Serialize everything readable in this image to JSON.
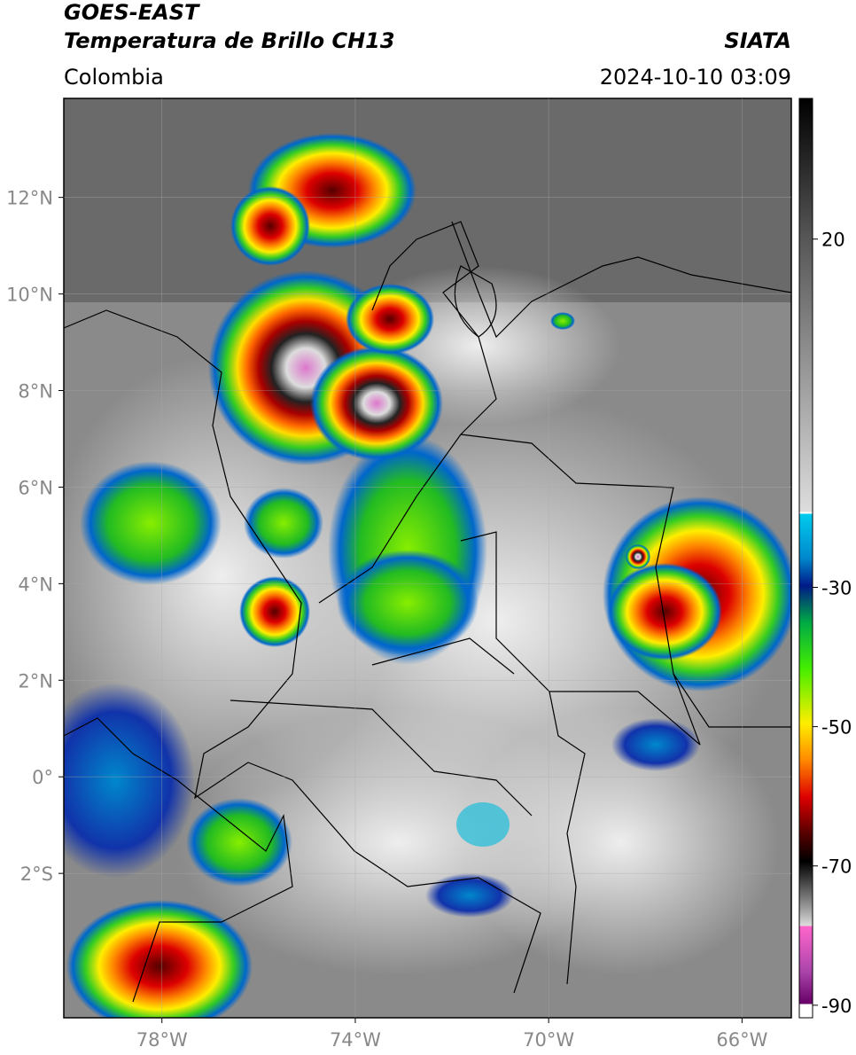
{
  "header": {
    "title": "GOES-EAST",
    "subtitle": "Temperatura de Brillo CH13",
    "region": "Colombia",
    "source": "SIATA",
    "datetime": "2024-10-10 03:09"
  },
  "map": {
    "lonlim": [
      -80.03,
      -64.98
    ],
    "latlim": [
      -4.99,
      14.05
    ],
    "grid": true,
    "lonticks": [
      {
        "value": -78,
        "label": "78°W"
      },
      {
        "value": -74,
        "label": "74°W"
      },
      {
        "value": -70,
        "label": "70°W"
      },
      {
        "value": -66,
        "label": "66°W"
      }
    ],
    "latticks": [
      {
        "value": 12,
        "label": "12°N"
      },
      {
        "value": 10,
        "label": "10°N"
      },
      {
        "value": 8,
        "label": "8°N"
      },
      {
        "value": 6,
        "label": "6°N"
      },
      {
        "value": 4,
        "label": "4°N"
      },
      {
        "value": 2,
        "label": "2°N"
      },
      {
        "value": 0,
        "label": "0°"
      },
      {
        "value": -2,
        "label": "2°S"
      }
    ]
  },
  "colorbar": {
    "lim": [
      -91.8,
      40.2
    ],
    "ticks": [
      20,
      -30,
      -50,
      -70,
      -90
    ]
  }
}
